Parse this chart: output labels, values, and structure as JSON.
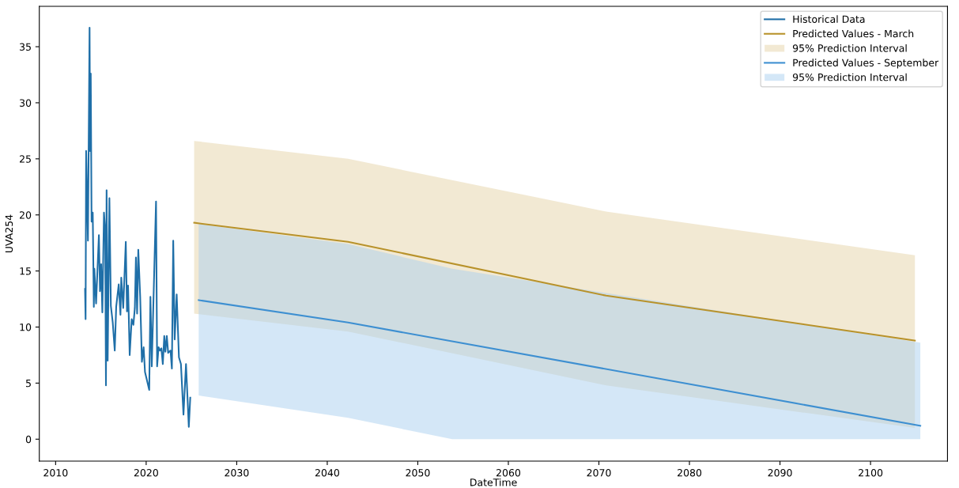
{
  "chart_data": {
    "type": "line",
    "xlabel": "DateTime",
    "ylabel": "UVA254",
    "xlim": [
      2008.2,
      2108.5
    ],
    "ylim": [
      -1.96,
      38.6
    ],
    "xticks": [
      2010,
      2020,
      2030,
      2040,
      2050,
      2060,
      2070,
      2080,
      2090,
      2100
    ],
    "yticks": [
      0,
      5,
      10,
      15,
      20,
      25,
      30,
      35
    ],
    "grid": false,
    "legend": "top right",
    "series": [
      {
        "name": "Historical Data",
        "color": "#1f6fa8",
        "x": [
          2013.25,
          2013.31,
          2013.37,
          2013.57,
          2013.75,
          2013.81,
          2013.88,
          2013.97,
          2014.1,
          2014.22,
          2014.28,
          2014.47,
          2014.78,
          2014.9,
          2015.03,
          2015.16,
          2015.34,
          2015.47,
          2015.56,
          2015.63,
          2015.75,
          2015.94,
          2016.1,
          2016.31,
          2016.53,
          2016.69,
          2016.97,
          2017.16,
          2017.25,
          2017.47,
          2017.75,
          2017.88,
          2018.0,
          2018.18,
          2018.4,
          2018.59,
          2018.75,
          2018.87,
          2019.0,
          2019.13,
          2019.34,
          2019.53,
          2019.72,
          2019.87,
          2020.34,
          2020.47,
          2020.62,
          2021.09,
          2021.21,
          2021.37,
          2021.53,
          2021.68,
          2021.84,
          2022.0,
          2022.12,
          2022.28,
          2022.43,
          2022.69,
          2022.84,
          2022.99,
          2023.15,
          2023.37,
          2023.62,
          2023.84,
          2024.12,
          2024.4,
          2024.71,
          2024.87
        ],
        "values": [
          13.4,
          10.7,
          25.7,
          17.7,
          36.7,
          25.7,
          32.6,
          19.4,
          20.2,
          11.8,
          15.2,
          12.1,
          18.2,
          13.2,
          15.6,
          11.3,
          20.2,
          18.7,
          4.8,
          22.2,
          7.0,
          21.5,
          11.9,
          10.4,
          7.9,
          11.8,
          13.8,
          11.1,
          14.4,
          11.7,
          17.6,
          11.4,
          13.7,
          7.5,
          10.7,
          10.2,
          11.7,
          16.2,
          11.2,
          16.9,
          12.7,
          6.9,
          8.2,
          6.0,
          4.4,
          12.7,
          6.5,
          21.2,
          6.5,
          8.2,
          7.9,
          8.1,
          6.7,
          9.2,
          7.8,
          9.2,
          7.7,
          7.9,
          6.3,
          17.7,
          8.9,
          12.9,
          7.3,
          6.7,
          2.2,
          6.7,
          1.1,
          3.7
        ]
      },
      {
        "name": "Predicted Values - March",
        "color": "#b8922a",
        "x": [
          2025.3,
          2042.3,
          2070.8,
          2104.9
        ],
        "values": [
          19.3,
          17.6,
          12.8,
          8.8
        ]
      },
      {
        "name": "95% Prediction Interval",
        "type": "area",
        "color": "#e6d3a8",
        "x": [
          2025.3,
          2042.3,
          2070.8,
          2104.9
        ],
        "values": [
          null,
          null,
          null,
          null
        ],
        "lower": [
          11.2,
          9.6,
          4.8,
          1.0
        ],
        "upper": [
          26.6,
          25.0,
          20.3,
          16.4
        ]
      },
      {
        "name": "Predicted Values - September",
        "color": "#3d8fd1",
        "x": [
          2025.8,
          2042.3,
          2105.5
        ],
        "values": [
          12.4,
          10.4,
          1.2
        ]
      },
      {
        "name": "95% Prediction Interval",
        "type": "area",
        "color": "#a9d0f0",
        "x": [
          2025.8,
          2042.3,
          2053.8,
          2105.5
        ],
        "values": [
          null,
          null,
          null,
          null
        ],
        "lower": [
          3.9,
          1.9,
          0,
          0
        ],
        "upper": [
          19.2,
          17.4,
          15.2,
          8.6
        ]
      }
    ]
  }
}
